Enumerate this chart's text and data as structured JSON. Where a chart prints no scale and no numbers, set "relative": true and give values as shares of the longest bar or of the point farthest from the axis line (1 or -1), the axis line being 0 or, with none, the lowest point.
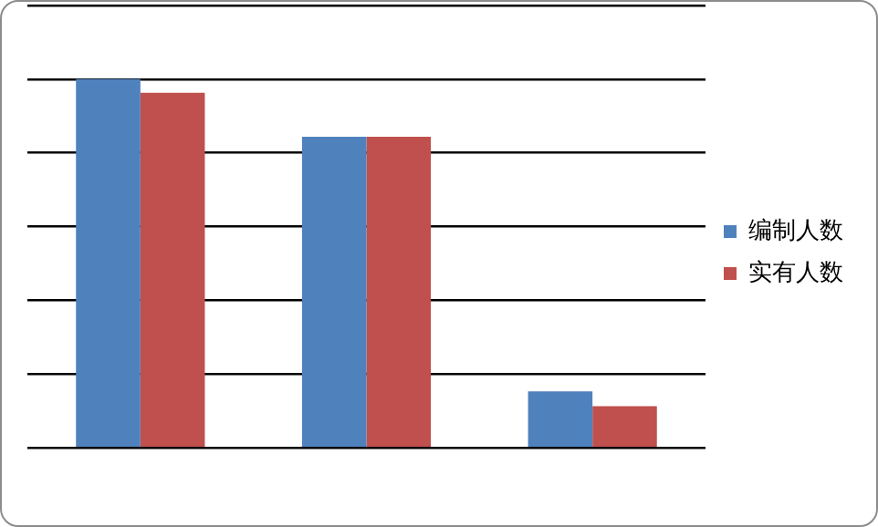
{
  "chart_data": {
    "type": "bar",
    "relative": true,
    "categories": [
      null,
      null,
      null
    ],
    "series": [
      {
        "name": "编制人数",
        "color": "#4f81bd",
        "values": [
          1,
          0.844,
          0.153
        ]
      },
      {
        "name": "实有人数",
        "color": "#c0504d",
        "values": [
          0.963,
          0.844,
          0.113
        ]
      }
    ],
    "grid": "y",
    "legend": "right"
  }
}
